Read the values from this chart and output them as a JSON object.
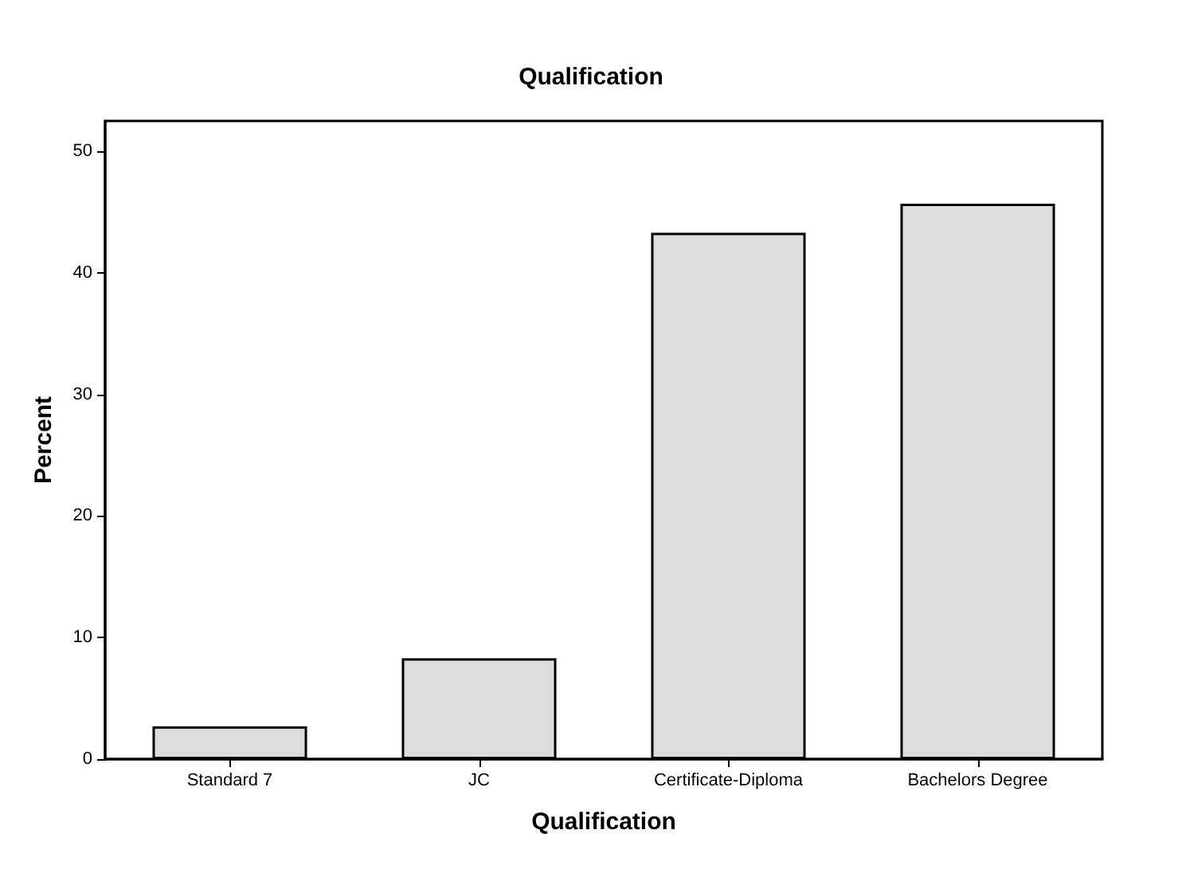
{
  "chart_data": {
    "type": "bar",
    "title": "Qualification",
    "xlabel": "Qualification",
    "ylabel": "Percent",
    "categories": [
      "Standard 7",
      "JC",
      "Certificate-Diploma",
      "Bachelors Degree"
    ],
    "values": [
      2.7,
      8.3,
      43.3,
      45.7
    ],
    "color": "#dcdcdc",
    "ylim": [
      0,
      52.5
    ],
    "yticks": [
      0,
      10,
      20,
      30,
      40,
      50
    ],
    "grid": false
  }
}
